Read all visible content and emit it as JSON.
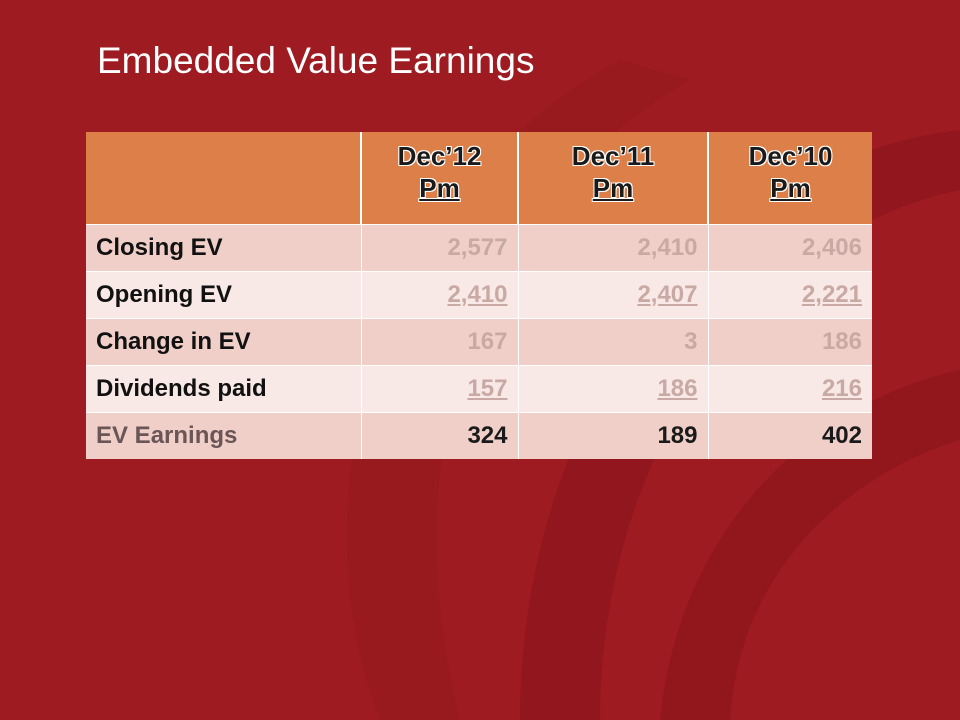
{
  "slide": {
    "title": "Embedded Value Earnings"
  },
  "colors": {
    "background": "#9e1b21",
    "header_fill": "#dd7f48",
    "row_odd": "#f0cfc9",
    "row_even": "#f8e8e6"
  },
  "table": {
    "columns": [
      {
        "line1": "Dec’12",
        "line2": "Pm"
      },
      {
        "line1": "Dec’11",
        "line2": "Pm"
      },
      {
        "line1": "Dec’10",
        "line2": "Pm"
      }
    ],
    "rows": [
      {
        "label": "Closing EV",
        "values": [
          "2,577",
          "2,410",
          "2,406"
        ]
      },
      {
        "label": "Opening EV",
        "values": [
          "2,410",
          "2,407",
          "2,221"
        ]
      },
      {
        "label": "Change in EV",
        "values": [
          "167",
          "3",
          "186"
        ]
      },
      {
        "label": "Dividends paid",
        "values": [
          "157",
          "186",
          "216"
        ]
      },
      {
        "label": "EV Earnings",
        "values": [
          "324",
          "189",
          "402"
        ]
      }
    ]
  }
}
